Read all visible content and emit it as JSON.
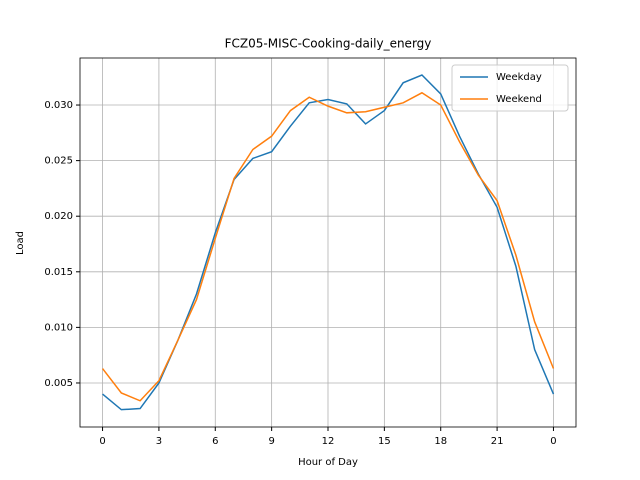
{
  "chart_data": {
    "type": "line",
    "title": "FCZ05-MISC-Cooking-daily_energy",
    "xlabel": "Hour of Day",
    "ylabel": "Load",
    "x": [
      0,
      1,
      2,
      3,
      4,
      5,
      6,
      7,
      8,
      9,
      10,
      11,
      12,
      13,
      14,
      15,
      16,
      17,
      18,
      19,
      20,
      21,
      22,
      23,
      24
    ],
    "series": [
      {
        "name": "Weekday",
        "color": "#1f77b4",
        "values": [
          0.004,
          0.0026,
          0.0027,
          0.005,
          0.0088,
          0.013,
          0.0185,
          0.0233,
          0.0252,
          0.0258,
          0.0281,
          0.0302,
          0.0305,
          0.0301,
          0.0283,
          0.0295,
          0.032,
          0.0327,
          0.031,
          0.0272,
          0.0238,
          0.0208,
          0.0155,
          0.008,
          0.004
        ]
      },
      {
        "name": "Weekend",
        "color": "#ff7f0e",
        "values": [
          0.0063,
          0.0041,
          0.0034,
          0.0052,
          0.0088,
          0.0125,
          0.018,
          0.0234,
          0.026,
          0.0272,
          0.0295,
          0.0307,
          0.0299,
          0.0293,
          0.0294,
          0.0298,
          0.0302,
          0.0311,
          0.03,
          0.0267,
          0.0237,
          0.0214,
          0.0165,
          0.0105,
          0.0063
        ]
      }
    ],
    "xlim": [
      -1.2,
      25.2
    ],
    "xticks": [
      0,
      3,
      6,
      9,
      12,
      15,
      18,
      21,
      {
        "value": 24,
        "label": "0"
      }
    ],
    "ylim": [
      0.00104,
      0.03423
    ],
    "yticks": [
      0.005,
      {
        "value": 0.01,
        "label": "0.010"
      },
      {
        "value": 0.015,
        "label": "0.015"
      },
      {
        "value": 0.02,
        "label": "0.020"
      },
      {
        "value": 0.025,
        "label": "0.025"
      },
      {
        "value": 0.03,
        "label": "0.030"
      }
    ],
    "grid": true,
    "legend": "upper right"
  }
}
